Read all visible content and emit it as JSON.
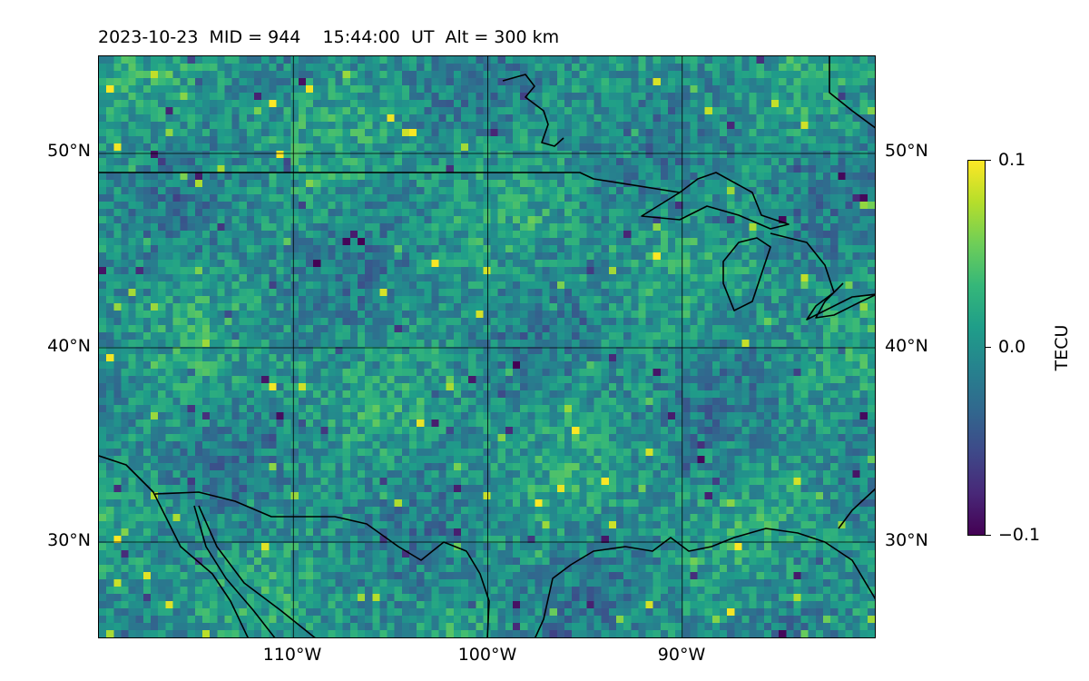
{
  "title": "2023-10-23  MID = 944    15:44:00  UT  Alt = 300 km",
  "map": {
    "extent": {
      "lon_min": -120,
      "lon_max": -80,
      "lat_min": 25,
      "lat_max": 55
    },
    "lat_ticks": [
      {
        "value": 50,
        "label": "50°N"
      },
      {
        "value": 40,
        "label": "40°N"
      },
      {
        "value": 30,
        "label": "30°N"
      }
    ],
    "lon_ticks": [
      {
        "value": -110,
        "label": "110°W"
      },
      {
        "value": -100,
        "label": "100°W"
      },
      {
        "value": -90,
        "label": "90°W"
      }
    ],
    "gridlines": true,
    "field": "TEC perturbation",
    "colormap": "viridis"
  },
  "colorbar": {
    "label": "TECU",
    "min": -0.1,
    "max": 0.1,
    "ticks": [
      {
        "value": 0.1,
        "label": "0.1"
      },
      {
        "value": 0.0,
        "label": "0.0"
      },
      {
        "value": -0.1,
        "label": "−0.1"
      }
    ]
  }
}
